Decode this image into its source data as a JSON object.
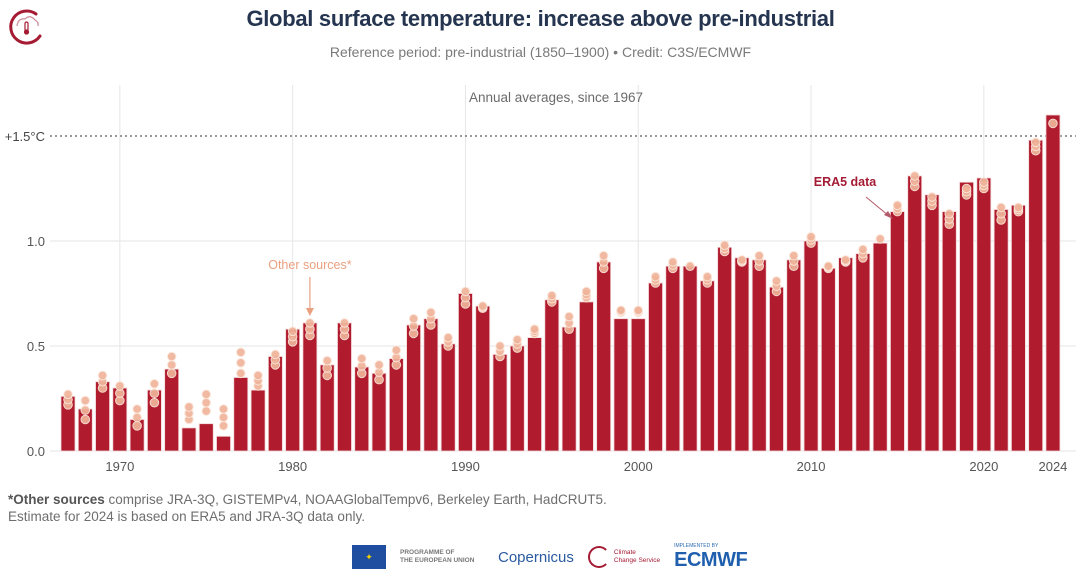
{
  "header": {
    "title": "Global surface temperature: increase above pre-industrial",
    "subtitle": "Reference period: pre-industrial (1850–1900) • Credit: C3S/ECMWF"
  },
  "footnote": {
    "bold": "*Other sources",
    "line1_rest": " comprise JRA-3Q, GISTEMPv4, NOAAGlobalTempv6, Berkeley Earth, HadCRUT5.",
    "line2": "Estimate for 2024 is based on ERA5 and JRA-3Q data only."
  },
  "logos": {
    "eu_line1": "PROGRAMME OF",
    "eu_line2": "THE EUROPEAN UNION",
    "copernicus": "Copernicus",
    "c3s_line1": "Climate",
    "c3s_line2": "Change Service",
    "ecmwf_small": "IMPLEMENTED BY",
    "ecmwf": "ECMWF"
  },
  "colors": {
    "bar": "#b01c2e",
    "other_sources": "#f0b49a",
    "title": "#253550",
    "era5_annotation": "#a51b34",
    "other_annotation": "#e9a07f"
  },
  "chart_data": {
    "type": "bar",
    "title": "Global surface temperature: increase above pre-industrial",
    "subtitle": "Annual averages, since 1967",
    "xlabel": "",
    "ylabel": "",
    "ylim": [
      0,
      1.7
    ],
    "yticks": [
      0.0,
      0.5,
      1.0
    ],
    "ytick_labels": [
      "0.0",
      "0.5",
      "1.0"
    ],
    "threshold": {
      "value": 1.5,
      "label": "+1.5°C",
      "style": "dotted"
    },
    "xtick_labels": [
      "1970",
      "1980",
      "1990",
      "2000",
      "2010",
      "2020",
      "2024"
    ],
    "grid": true,
    "annotations": [
      {
        "text": "ERA5 data",
        "points_to_year": 2015
      },
      {
        "text": "Other sources*",
        "points_to_year": 1981
      }
    ],
    "categories": [
      1967,
      1968,
      1969,
      1970,
      1971,
      1972,
      1973,
      1974,
      1975,
      1976,
      1977,
      1978,
      1979,
      1980,
      1981,
      1982,
      1983,
      1984,
      1985,
      1986,
      1987,
      1988,
      1989,
      1990,
      1991,
      1992,
      1993,
      1994,
      1995,
      1996,
      1997,
      1998,
      1999,
      2000,
      2001,
      2002,
      2003,
      2004,
      2005,
      2006,
      2007,
      2008,
      2009,
      2010,
      2011,
      2012,
      2013,
      2014,
      2015,
      2016,
      2017,
      2018,
      2019,
      2020,
      2021,
      2022,
      2023,
      2024
    ],
    "series": [
      {
        "name": "ERA5 data",
        "values": [
          0.26,
          0.2,
          0.33,
          0.3,
          0.15,
          0.29,
          0.39,
          0.11,
          0.13,
          0.07,
          0.35,
          0.29,
          0.45,
          0.58,
          0.61,
          0.41,
          0.61,
          0.4,
          0.37,
          0.44,
          0.6,
          0.63,
          0.51,
          0.75,
          0.69,
          0.46,
          0.5,
          0.54,
          0.72,
          0.59,
          0.71,
          0.9,
          0.63,
          0.63,
          0.8,
          0.88,
          0.88,
          0.81,
          0.97,
          0.92,
          0.91,
          0.78,
          0.91,
          1.0,
          0.87,
          0.92,
          0.94,
          0.99,
          1.14,
          1.31,
          1.22,
          1.14,
          1.28,
          1.3,
          1.15,
          1.17,
          1.48,
          1.6
        ]
      },
      {
        "name": "Other sources*",
        "values_range": [
          [
            0.22,
            0.27
          ],
          [
            0.15,
            0.24
          ],
          [
            0.3,
            0.36
          ],
          [
            0.24,
            0.31
          ],
          [
            0.12,
            0.2
          ],
          [
            0.23,
            0.32
          ],
          [
            0.37,
            0.45
          ],
          [
            0.15,
            0.21
          ],
          [
            0.19,
            0.27
          ],
          [
            0.12,
            0.2
          ],
          [
            0.37,
            0.47
          ],
          [
            0.31,
            0.36
          ],
          [
            0.41,
            0.46
          ],
          [
            0.52,
            0.57
          ],
          [
            0.55,
            0.61
          ],
          [
            0.36,
            0.43
          ],
          [
            0.55,
            0.61
          ],
          [
            0.37,
            0.44
          ],
          [
            0.34,
            0.41
          ],
          [
            0.41,
            0.48
          ],
          [
            0.56,
            0.63
          ],
          [
            0.6,
            0.66
          ],
          [
            0.5,
            0.54
          ],
          [
            0.7,
            0.76
          ],
          [
            0.68,
            0.69
          ],
          [
            0.45,
            0.5
          ],
          [
            0.49,
            0.53
          ],
          [
            0.56,
            0.58
          ],
          [
            0.71,
            0.74
          ],
          [
            0.58,
            0.64
          ],
          [
            0.73,
            0.76
          ],
          [
            0.87,
            0.93
          ],
          [
            0.66,
            0.67
          ],
          [
            0.66,
            0.67
          ],
          [
            0.8,
            0.83
          ],
          [
            0.87,
            0.9
          ],
          [
            0.88,
            0.88
          ],
          [
            0.8,
            0.83
          ],
          [
            0.95,
            0.98
          ],
          [
            0.9,
            0.91
          ],
          [
            0.88,
            0.93
          ],
          [
            0.76,
            0.81
          ],
          [
            0.88,
            0.93
          ],
          [
            0.99,
            1.02
          ],
          [
            0.87,
            0.88
          ],
          [
            0.9,
            0.91
          ],
          [
            0.92,
            0.96
          ],
          [
            1.01,
            1.01
          ],
          [
            1.14,
            1.17
          ],
          [
            1.26,
            1.31
          ],
          [
            1.17,
            1.21
          ],
          [
            1.08,
            1.13
          ],
          [
            1.22,
            1.25
          ],
          [
            1.25,
            1.28
          ],
          [
            1.1,
            1.16
          ],
          [
            1.14,
            1.16
          ],
          [
            1.43,
            1.47
          ],
          [
            1.56,
            1.56
          ]
        ]
      }
    ]
  }
}
